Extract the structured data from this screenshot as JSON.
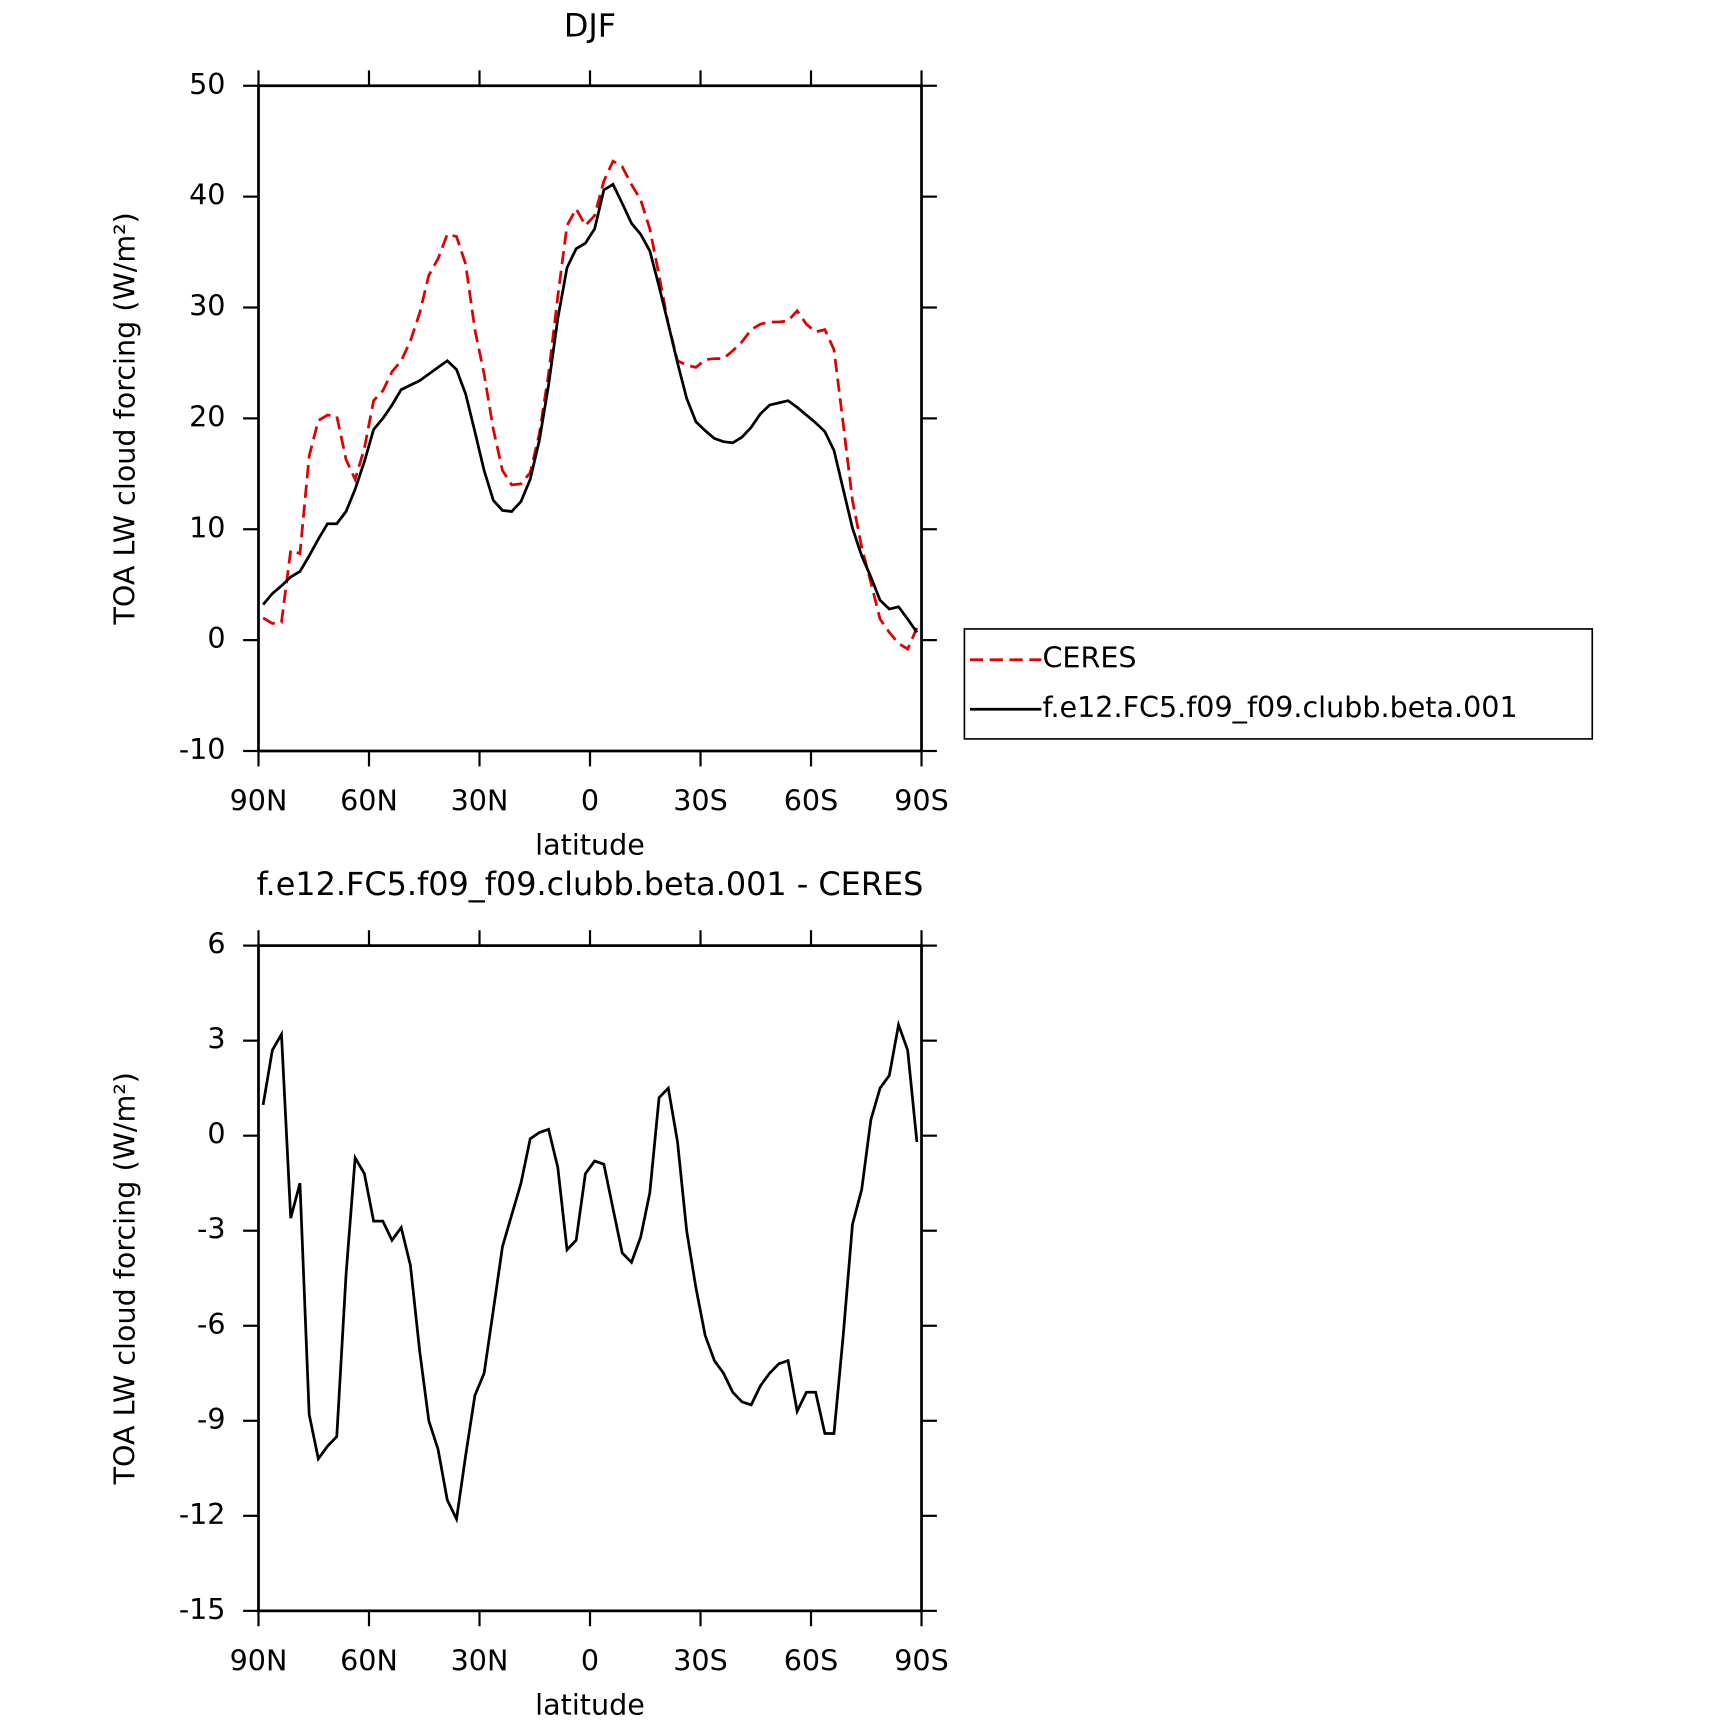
{
  "chart_data": [
    {
      "type": "line",
      "title": "DJF",
      "xlabel": "latitude",
      "ylabel": "TOA LW cloud forcing (W/m²)",
      "x": [
        88.75,
        86.25,
        83.75,
        81.25,
        78.75,
        76.25,
        73.75,
        71.25,
        68.75,
        66.25,
        63.75,
        61.25,
        58.75,
        56.25,
        53.75,
        51.25,
        48.75,
        46.25,
        43.75,
        41.25,
        38.75,
        36.25,
        33.75,
        31.25,
        28.75,
        26.25,
        23.75,
        21.25,
        18.75,
        16.25,
        13.75,
        11.25,
        8.75,
        6.25,
        3.75,
        1.25,
        -1.25,
        -3.75,
        -6.25,
        -8.75,
        -11.25,
        -13.75,
        -16.25,
        -18.75,
        -21.25,
        -23.75,
        -26.25,
        -28.75,
        -31.25,
        -33.75,
        -36.25,
        -38.75,
        -41.25,
        -43.75,
        -46.25,
        -48.75,
        -51.25,
        -53.75,
        -56.25,
        -58.75,
        -61.25,
        -63.75,
        -66.25,
        -68.75,
        -71.25,
        -73.75,
        -76.25,
        -78.75,
        -81.25,
        -83.75,
        -86.25,
        -88.75
      ],
      "series": [
        {
          "name": "CERES",
          "color": "#e00000",
          "dashed": true,
          "values": [
            2.0,
            1.5,
            1.6,
            8.1,
            7.8,
            16.6,
            19.8,
            20.3,
            20.2,
            16.3,
            14.5,
            17.3,
            21.6,
            22.5,
            24.2,
            25.2,
            27.0,
            29.5,
            32.9,
            34.4,
            36.6,
            36.4,
            33.9,
            28.0,
            24.0,
            19.0,
            15.3,
            14.0,
            14.1,
            15.1,
            18.6,
            24.0,
            31.0,
            37.4,
            38.9,
            37.4,
            38.3,
            41.4,
            43.2,
            42.7,
            41.1,
            39.7,
            37.1,
            32.9,
            28.5,
            25.2,
            24.8,
            24.6,
            25.3,
            25.4,
            25.4,
            26.1,
            26.9,
            28.0,
            28.5,
            28.7,
            28.7,
            28.8,
            29.7,
            28.5,
            27.8,
            28.0,
            26.2,
            19.5,
            12.6,
            8.4,
            5.2,
            1.9,
            0.7,
            -0.3,
            -0.8,
            1.1
          ]
        },
        {
          "name": "f.e12.FC5.f09_f09.clubb.beta.001",
          "color": "#000000",
          "dashed": false,
          "values": [
            3.2,
            4.2,
            4.9,
            5.7,
            6.2,
            7.6,
            9.1,
            10.5,
            10.5,
            11.6,
            13.6,
            16.1,
            19.0,
            20.0,
            21.2,
            22.6,
            23.0,
            23.4,
            24.0,
            24.6,
            25.2,
            24.4,
            22.2,
            18.8,
            15.3,
            12.6,
            11.7,
            11.6,
            12.5,
            14.5,
            18.0,
            23.0,
            29.0,
            33.6,
            35.3,
            35.8,
            37.1,
            40.6,
            41.1,
            39.4,
            37.6,
            36.6,
            35.1,
            31.9,
            28.5,
            25.0,
            21.8,
            19.7,
            18.9,
            18.2,
            17.9,
            17.8,
            18.3,
            19.2,
            20.4,
            21.2,
            21.4,
            21.6,
            21.0,
            20.3,
            19.6,
            18.8,
            17.1,
            13.6,
            10.1,
            7.6,
            5.7,
            3.6,
            2.8,
            3.0,
            1.9,
            0.7
          ]
        }
      ],
      "xlim": [
        90,
        -90
      ],
      "xticks": [
        {
          "value": 90,
          "label": "90N"
        },
        {
          "value": 60,
          "label": "60N"
        },
        {
          "value": 30,
          "label": "30N"
        },
        0,
        {
          "value": -30,
          "label": "30S"
        },
        {
          "value": -60,
          "label": "60S"
        },
        {
          "value": -90,
          "label": "90S"
        }
      ],
      "ylim": [
        -10,
        50
      ],
      "yticks": [
        -10,
        0,
        10,
        20,
        30,
        40,
        50
      ],
      "legend": "right"
    },
    {
      "type": "line",
      "title": "f.e12.FC5.f09_f09.clubb.beta.001 - CERES",
      "xlabel": "latitude",
      "ylabel": "TOA LW cloud forcing (W/m²)",
      "x": [
        88.75,
        86.25,
        83.75,
        81.25,
        78.75,
        76.25,
        73.75,
        71.25,
        68.75,
        66.25,
        63.75,
        61.25,
        58.75,
        56.25,
        53.75,
        51.25,
        48.75,
        46.25,
        43.75,
        41.25,
        38.75,
        36.25,
        33.75,
        31.25,
        28.75,
        26.25,
        23.75,
        21.25,
        18.75,
        16.25,
        13.75,
        11.25,
        8.75,
        6.25,
        3.75,
        1.25,
        -1.25,
        -3.75,
        -6.25,
        -8.75,
        -11.25,
        -13.75,
        -16.25,
        -18.75,
        -21.25,
        -23.75,
        -26.25,
        -28.75,
        -31.25,
        -33.75,
        -36.25,
        -38.75,
        -41.25,
        -43.75,
        -46.25,
        -48.75,
        -51.25,
        -53.75,
        -56.25,
        -58.75,
        -61.25,
        -63.75,
        -66.25,
        -68.75,
        -71.25,
        -73.75,
        -76.25,
        -78.75,
        -81.25,
        -83.75,
        -86.25,
        -88.75
      ],
      "color": "#000000",
      "values": [
        0.97,
        2.7,
        3.2,
        -2.6,
        -1.5,
        -8.8,
        -10.2,
        -9.8,
        -9.5,
        -4.4,
        -0.7,
        -1.2,
        -2.7,
        -2.7,
        -3.3,
        -2.9,
        -4.1,
        -6.8,
        -9.0,
        -9.9,
        -11.5,
        -12.1,
        -10.1,
        -8.2,
        -7.5,
        -5.5,
        -3.5,
        -2.5,
        -1.5,
        -0.1,
        0.1,
        0.2,
        -1.0,
        -3.6,
        -3.3,
        -1.2,
        -0.8,
        -0.9,
        -2.3,
        -3.7,
        -4.0,
        -3.2,
        -1.8,
        1.2,
        1.5,
        -0.2,
        -3.0,
        -4.8,
        -6.3,
        -7.1,
        -7.5,
        -8.1,
        -8.4,
        -8.5,
        -7.9,
        -7.5,
        -7.2,
        -7.1,
        -8.7,
        -8.1,
        -8.1,
        -9.4,
        -9.4,
        -6.3,
        -2.8,
        -1.7,
        0.5,
        1.5,
        1.9,
        3.5,
        2.7,
        -0.2
      ],
      "xlim": [
        90,
        -90
      ],
      "xticks": [
        {
          "value": 90,
          "label": "90N"
        },
        {
          "value": 60,
          "label": "60N"
        },
        {
          "value": 30,
          "label": "30N"
        },
        0,
        {
          "value": -30,
          "label": "30S"
        },
        {
          "value": -60,
          "label": "60S"
        },
        {
          "value": -90,
          "label": "90S"
        }
      ],
      "ylim": [
        -15,
        6
      ],
      "yticks": [
        -15,
        -12,
        -9,
        -6,
        -3,
        0,
        3,
        6
      ]
    }
  ]
}
